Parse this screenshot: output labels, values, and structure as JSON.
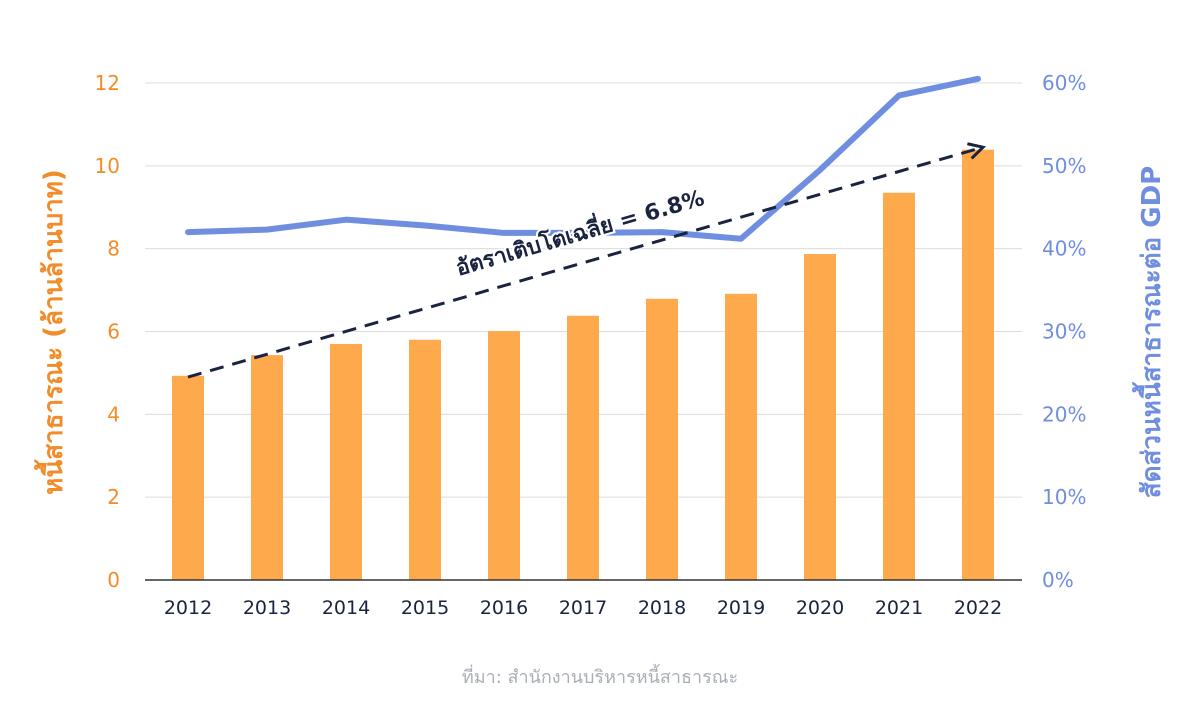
{
  "chart_data": {
    "type": "bar+line",
    "categories": [
      "2012",
      "2013",
      "2014",
      "2015",
      "2016",
      "2017",
      "2018",
      "2019",
      "2020",
      "2021",
      "2022"
    ],
    "series": [
      {
        "name": "หนี้สาธารณะ (ล้านล้านบาท)",
        "type": "bar",
        "axis": "left",
        "color": "#ffa94d",
        "values": [
          4.93,
          5.43,
          5.7,
          5.8,
          6.01,
          6.38,
          6.79,
          6.91,
          7.87,
          9.35,
          10.39
        ]
      },
      {
        "name": "สัดส่วนหนี้สาธารณะต่อ GDP",
        "type": "line",
        "axis": "right",
        "color": "#6f8ee0",
        "values": [
          42.0,
          42.3,
          43.5,
          42.8,
          41.9,
          41.9,
          42.0,
          41.2,
          49.5,
          58.5,
          60.5
        ]
      }
    ],
    "trend": {
      "label": "อัตราเติบโตเฉลี่ย = 6.8%",
      "start": 4.9,
      "end": 10.45,
      "color": "#1a2340"
    },
    "ylabel_left": "หนี้สาธารณะ (ล้านล้านบาท)",
    "ylabel_right": "สัดส่วนหนี้สาธารณะต่อ GDP",
    "ylim_left": [
      0,
      12
    ],
    "yticks_left": [
      "0",
      "2",
      "4",
      "6",
      "8",
      "10",
      "12"
    ],
    "ylim_right": [
      0,
      60
    ],
    "yticks_right": [
      "0%",
      "10%",
      "20%",
      "30%",
      "40%",
      "50%",
      "60%"
    ],
    "grid": true,
    "source": "ที่มา: สำนักงานบริหารหนี้สาธารณะ"
  }
}
